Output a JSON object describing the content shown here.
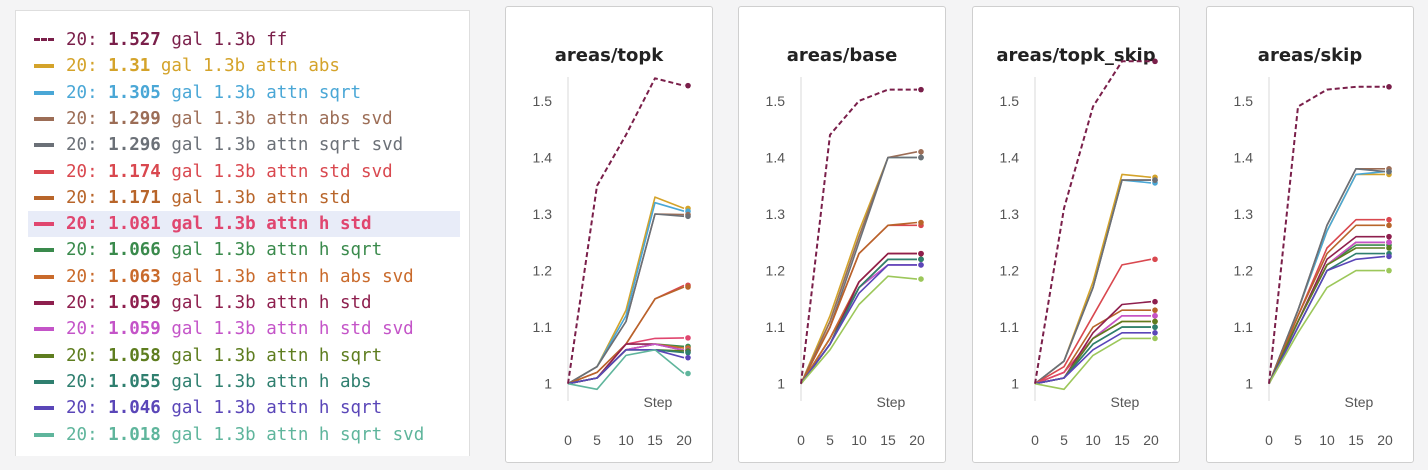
{
  "legend": {
    "items": [
      {
        "prefix": "20:",
        "value": "1.527",
        "label": "gal 1.3b ff",
        "color": "#7a1f4a",
        "dashed": true
      },
      {
        "prefix": "20:",
        "value": "1.31",
        "label": "gal 1.3b attn abs",
        "color": "#d4a32a"
      },
      {
        "prefix": "20:",
        "value": "1.305",
        "label": "gal 1.3b attn sqrt",
        "color": "#4aa7d6"
      },
      {
        "prefix": "20:",
        "value": "1.299",
        "label": "gal 1.3b attn abs svd",
        "color": "#9c6d56"
      },
      {
        "prefix": "20:",
        "value": "1.296",
        "label": "gal 1.3b attn sqrt svd",
        "color": "#6b7077"
      },
      {
        "prefix": "20:",
        "value": "1.174",
        "label": "gal 1.3b attn std svd",
        "color": "#d9484f"
      },
      {
        "prefix": "20:",
        "value": "1.171",
        "label": "gal 1.3b attn std",
        "color": "#b8652a"
      },
      {
        "prefix": "20:",
        "value": "1.081",
        "label": "gal 1.3b attn h std",
        "color": "#e0466f",
        "highlighted": true
      },
      {
        "prefix": "20:",
        "value": "1.066",
        "label": "gal 1.3b attn h sqrt",
        "color": "#3a8a4c"
      },
      {
        "prefix": "20:",
        "value": "1.063",
        "label": "gal 1.3b attn h abs svd",
        "color": "#c96a2b"
      },
      {
        "prefix": "20:",
        "value": "1.059",
        "label": "gal 1.3b attn h std",
        "color": "#8e1f4e"
      },
      {
        "prefix": "20:",
        "value": "1.059",
        "label": "gal 1.3b attn h std svd",
        "color": "#c454c8"
      },
      {
        "prefix": "20:",
        "value": "1.058",
        "label": "gal 1.3b attn h sqrt",
        "color": "#5e7d1f"
      },
      {
        "prefix": "20:",
        "value": "1.055",
        "label": "gal 1.3b attn h abs",
        "color": "#2f7f6f"
      },
      {
        "prefix": "20:",
        "value": "1.046",
        "label": "gal 1.3b attn h sqrt",
        "color": "#5a46b8"
      },
      {
        "prefix": "20:",
        "value": "1.018",
        "label": "gal 1.3b attn h sqrt svd",
        "color": "#5fb59c"
      }
    ]
  },
  "chart_data": [
    {
      "type": "line",
      "title": "areas/topk",
      "xlabel": "Step",
      "xlim": [
        0,
        20
      ],
      "ylim": [
        0.98,
        1.56
      ],
      "x_ticks": [
        0,
        5,
        10,
        15,
        20
      ],
      "y_ticks": [
        1,
        1.1,
        1.2,
        1.3,
        1.4,
        1.5
      ],
      "x": [
        0,
        5,
        10,
        15,
        20
      ],
      "series": [
        {
          "name": "gal 1.3b ff",
          "color": "#7a1f4a",
          "dashed": true,
          "values": [
            1.0,
            1.35,
            1.44,
            1.54,
            1.527
          ]
        },
        {
          "name": "gal 1.3b attn abs",
          "color": "#d4a32a",
          "values": [
            1.0,
            1.03,
            1.13,
            1.33,
            1.31
          ]
        },
        {
          "name": "gal 1.3b attn sqrt",
          "color": "#4aa7d6",
          "values": [
            1.0,
            1.03,
            1.12,
            1.32,
            1.305
          ]
        },
        {
          "name": "gal 1.3b attn abs svd",
          "color": "#9c6d56",
          "values": [
            1.0,
            1.03,
            1.11,
            1.3,
            1.299
          ]
        },
        {
          "name": "gal 1.3b attn sqrt svd",
          "color": "#6b7077",
          "values": [
            1.0,
            1.03,
            1.11,
            1.3,
            1.296
          ]
        },
        {
          "name": "gal 1.3b attn std svd",
          "color": "#d9484f",
          "values": [
            1.0,
            1.02,
            1.07,
            1.15,
            1.174
          ]
        },
        {
          "name": "gal 1.3b attn std",
          "color": "#b8652a",
          "values": [
            1.0,
            1.02,
            1.07,
            1.15,
            1.171
          ]
        },
        {
          "name": "gal 1.3b attn h std",
          "color": "#e0466f",
          "values": [
            1.0,
            1.01,
            1.07,
            1.08,
            1.081
          ]
        },
        {
          "name": "gal 1.3b attn h sqrt",
          "color": "#3a8a4c",
          "values": [
            1.0,
            1.01,
            1.06,
            1.07,
            1.066
          ]
        },
        {
          "name": "gal 1.3b attn h abs svd",
          "color": "#c96a2b",
          "values": [
            1.0,
            1.01,
            1.06,
            1.07,
            1.063
          ]
        },
        {
          "name": "gal 1.3b attn h std",
          "color": "#8e1f4e",
          "values": [
            1.0,
            1.01,
            1.07,
            1.07,
            1.059
          ]
        },
        {
          "name": "gal 1.3b attn h std svd",
          "color": "#c454c8",
          "values": [
            1.0,
            1.01,
            1.06,
            1.07,
            1.059
          ]
        },
        {
          "name": "gal 1.3b attn h sqrt",
          "color": "#5e7d1f",
          "values": [
            1.0,
            1.01,
            1.06,
            1.06,
            1.058
          ]
        },
        {
          "name": "gal 1.3b attn h abs",
          "color": "#2f7f6f",
          "values": [
            1.0,
            1.01,
            1.06,
            1.06,
            1.055
          ]
        },
        {
          "name": "gal 1.3b attn h sqrt",
          "color": "#5a46b8",
          "values": [
            1.0,
            1.01,
            1.06,
            1.06,
            1.046
          ]
        },
        {
          "name": "gal 1.3b attn h sqrt svd",
          "color": "#5fb59c",
          "values": [
            1.0,
            0.99,
            1.05,
            1.06,
            1.018
          ]
        }
      ]
    },
    {
      "type": "line",
      "title": "areas/base",
      "xlabel": "Step",
      "xlim": [
        0,
        20
      ],
      "ylim": [
        0.98,
        1.56
      ],
      "x_ticks": [
        0,
        5,
        10,
        15,
        20
      ],
      "y_ticks": [
        1,
        1.1,
        1.2,
        1.3,
        1.4,
        1.5
      ],
      "x": [
        0,
        5,
        10,
        15,
        20
      ],
      "series": [
        {
          "name": "gal 1.3b ff",
          "color": "#7a1f4a",
          "dashed": true,
          "values": [
            1.0,
            1.44,
            1.5,
            1.52,
            1.52
          ]
        },
        {
          "name": "gal 1.3b attn abs",
          "color": "#d4a32a",
          "values": [
            1.0,
            1.12,
            1.27,
            1.4,
            1.4
          ]
        },
        {
          "name": "gal 1.3b attn sqrt",
          "color": "#4aa7d6",
          "values": [
            1.0,
            1.11,
            1.26,
            1.4,
            1.4
          ]
        },
        {
          "name": "gal 1.3b attn abs svd",
          "color": "#9c6d56",
          "values": [
            1.0,
            1.11,
            1.26,
            1.4,
            1.41
          ]
        },
        {
          "name": "gal 1.3b attn sqrt svd",
          "color": "#6b7077",
          "values": [
            1.0,
            1.1,
            1.25,
            1.4,
            1.4
          ]
        },
        {
          "name": "gal 1.3b attn std svd",
          "color": "#d9484f",
          "values": [
            1.0,
            1.1,
            1.23,
            1.28,
            1.28
          ]
        },
        {
          "name": "gal 1.3b attn std",
          "color": "#b8652a",
          "values": [
            1.0,
            1.1,
            1.23,
            1.28,
            1.285
          ]
        },
        {
          "name": "gal 1.3b attn h std",
          "color": "#e0466f",
          "values": [
            1.0,
            1.08,
            1.18,
            1.23,
            1.23
          ]
        },
        {
          "name": "gal 1.3b attn h sqrt",
          "color": "#3a8a4c",
          "values": [
            1.0,
            1.08,
            1.17,
            1.22,
            1.22
          ]
        },
        {
          "name": "gal 1.3b attn h abs svd",
          "color": "#c96a2b",
          "values": [
            1.0,
            1.08,
            1.18,
            1.23,
            1.23
          ]
        },
        {
          "name": "gal 1.3b attn h std",
          "color": "#8e1f4e",
          "values": [
            1.0,
            1.07,
            1.18,
            1.23,
            1.23
          ]
        },
        {
          "name": "gal 1.3b attn h std svd",
          "color": "#c454c8",
          "values": [
            1.0,
            1.07,
            1.17,
            1.21,
            1.21
          ]
        },
        {
          "name": "gal 1.3b attn h sqrt",
          "color": "#5e7d1f",
          "values": [
            1.0,
            1.07,
            1.17,
            1.22,
            1.22
          ]
        },
        {
          "name": "gal 1.3b attn h abs",
          "color": "#2f7f6f",
          "values": [
            1.0,
            1.07,
            1.17,
            1.22,
            1.22
          ]
        },
        {
          "name": "gal 1.3b attn h sqrt",
          "color": "#5a46b8",
          "values": [
            1.0,
            1.07,
            1.16,
            1.21,
            1.21
          ]
        },
        {
          "name": "gal 1.3b attn h sqrt svd",
          "color": "#9cc75a",
          "values": [
            1.0,
            1.06,
            1.14,
            1.19,
            1.185
          ]
        }
      ]
    },
    {
      "type": "line",
      "title": "areas/topk_skip",
      "xlabel": "Step",
      "xlim": [
        0,
        20
      ],
      "ylim": [
        0.98,
        1.56
      ],
      "x_ticks": [
        0,
        5,
        10,
        15,
        20
      ],
      "y_ticks": [
        1,
        1.1,
        1.2,
        1.3,
        1.4,
        1.5
      ],
      "x": [
        0,
        5,
        10,
        15,
        20
      ],
      "series": [
        {
          "name": "gal 1.3b ff",
          "color": "#7a1f4a",
          "dashed": true,
          "values": [
            1.0,
            1.31,
            1.49,
            1.57,
            1.57
          ]
        },
        {
          "name": "gal 1.3b attn abs",
          "color": "#d4a32a",
          "values": [
            1.0,
            1.04,
            1.18,
            1.37,
            1.365
          ]
        },
        {
          "name": "gal 1.3b attn sqrt",
          "color": "#4aa7d6",
          "values": [
            1.0,
            1.04,
            1.17,
            1.36,
            1.355
          ]
        },
        {
          "name": "gal 1.3b attn abs svd",
          "color": "#9c6d56",
          "values": [
            1.0,
            1.04,
            1.17,
            1.36,
            1.36
          ]
        },
        {
          "name": "gal 1.3b attn sqrt svd",
          "color": "#6b7077",
          "values": [
            1.0,
            1.04,
            1.17,
            1.36,
            1.36
          ]
        },
        {
          "name": "gal 1.3b attn std svd",
          "color": "#d9484f",
          "values": [
            1.0,
            1.03,
            1.12,
            1.21,
            1.22
          ]
        },
        {
          "name": "gal 1.3b attn std",
          "color": "#b8652a",
          "values": [
            1.0,
            1.02,
            1.1,
            1.13,
            1.13
          ]
        },
        {
          "name": "gal 1.3b attn h std",
          "color": "#e0466f",
          "values": [
            1.0,
            1.02,
            1.08,
            1.12,
            1.12
          ]
        },
        {
          "name": "gal 1.3b attn h sqrt",
          "color": "#3a8a4c",
          "values": [
            1.0,
            1.01,
            1.07,
            1.1,
            1.1
          ]
        },
        {
          "name": "gal 1.3b attn h abs svd",
          "color": "#c96a2b",
          "values": [
            1.0,
            1.01,
            1.08,
            1.11,
            1.11
          ]
        },
        {
          "name": "gal 1.3b attn h std",
          "color": "#8e1f4e",
          "values": [
            1.0,
            1.01,
            1.09,
            1.14,
            1.145
          ]
        },
        {
          "name": "gal 1.3b attn h std svd",
          "color": "#c454c8",
          "values": [
            1.0,
            1.01,
            1.08,
            1.12,
            1.12
          ]
        },
        {
          "name": "gal 1.3b attn h sqrt",
          "color": "#5e7d1f",
          "values": [
            1.0,
            1.01,
            1.08,
            1.11,
            1.11
          ]
        },
        {
          "name": "gal 1.3b attn h abs",
          "color": "#2f7f6f",
          "values": [
            1.0,
            1.01,
            1.07,
            1.1,
            1.1
          ]
        },
        {
          "name": "gal 1.3b attn h sqrt",
          "color": "#5a46b8",
          "values": [
            1.0,
            1.01,
            1.06,
            1.09,
            1.09
          ]
        },
        {
          "name": "gal 1.3b attn h sqrt svd",
          "color": "#9cc75a",
          "values": [
            1.0,
            0.99,
            1.05,
            1.08,
            1.08
          ]
        }
      ]
    },
    {
      "type": "line",
      "title": "areas/skip",
      "xlabel": "Step",
      "xlim": [
        0,
        20
      ],
      "ylim": [
        0.98,
        1.56
      ],
      "x_ticks": [
        0,
        5,
        10,
        15,
        20
      ],
      "y_ticks": [
        1,
        1.1,
        1.2,
        1.3,
        1.4,
        1.5
      ],
      "x": [
        0,
        5,
        10,
        15,
        20
      ],
      "series": [
        {
          "name": "gal 1.3b ff",
          "color": "#7a1f4a",
          "dashed": true,
          "values": [
            1.0,
            1.49,
            1.52,
            1.525,
            1.525
          ]
        },
        {
          "name": "gal 1.3b attn abs",
          "color": "#d4a32a",
          "values": [
            1.0,
            1.13,
            1.27,
            1.37,
            1.37
          ]
        },
        {
          "name": "gal 1.3b attn sqrt",
          "color": "#4aa7d6",
          "values": [
            1.0,
            1.13,
            1.27,
            1.37,
            1.375
          ]
        },
        {
          "name": "gal 1.3b attn abs svd",
          "color": "#9c6d56",
          "values": [
            1.0,
            1.13,
            1.28,
            1.38,
            1.38
          ]
        },
        {
          "name": "gal 1.3b attn sqrt svd",
          "color": "#6b7077",
          "values": [
            1.0,
            1.13,
            1.28,
            1.38,
            1.375
          ]
        },
        {
          "name": "gal 1.3b attn std svd",
          "color": "#d9484f",
          "values": [
            1.0,
            1.12,
            1.24,
            1.29,
            1.29
          ]
        },
        {
          "name": "gal 1.3b attn std",
          "color": "#b8652a",
          "values": [
            1.0,
            1.12,
            1.23,
            1.28,
            1.28
          ]
        },
        {
          "name": "gal 1.3b attn h std",
          "color": "#e0466f",
          "values": [
            1.0,
            1.11,
            1.21,
            1.25,
            1.25
          ]
        },
        {
          "name": "gal 1.3b attn h sqrt",
          "color": "#3a8a4c",
          "values": [
            1.0,
            1.11,
            1.21,
            1.245,
            1.245
          ]
        },
        {
          "name": "gal 1.3b attn h abs svd",
          "color": "#c96a2b",
          "values": [
            1.0,
            1.11,
            1.21,
            1.25,
            1.25
          ]
        },
        {
          "name": "gal 1.3b attn h std",
          "color": "#8e1f4e",
          "values": [
            1.0,
            1.11,
            1.22,
            1.26,
            1.26
          ]
        },
        {
          "name": "gal 1.3b attn h std svd",
          "color": "#c454c8",
          "values": [
            1.0,
            1.11,
            1.21,
            1.25,
            1.25
          ]
        },
        {
          "name": "gal 1.3b attn h sqrt",
          "color": "#5e7d1f",
          "values": [
            1.0,
            1.11,
            1.21,
            1.24,
            1.24
          ]
        },
        {
          "name": "gal 1.3b attn h abs",
          "color": "#2f7f6f",
          "values": [
            1.0,
            1.1,
            1.2,
            1.23,
            1.23
          ]
        },
        {
          "name": "gal 1.3b attn h sqrt",
          "color": "#5a46b8",
          "values": [
            1.0,
            1.1,
            1.2,
            1.22,
            1.225
          ]
        },
        {
          "name": "gal 1.3b attn h sqrt svd",
          "color": "#9cc75a",
          "values": [
            1.0,
            1.09,
            1.17,
            1.2,
            1.2
          ]
        }
      ]
    }
  ]
}
